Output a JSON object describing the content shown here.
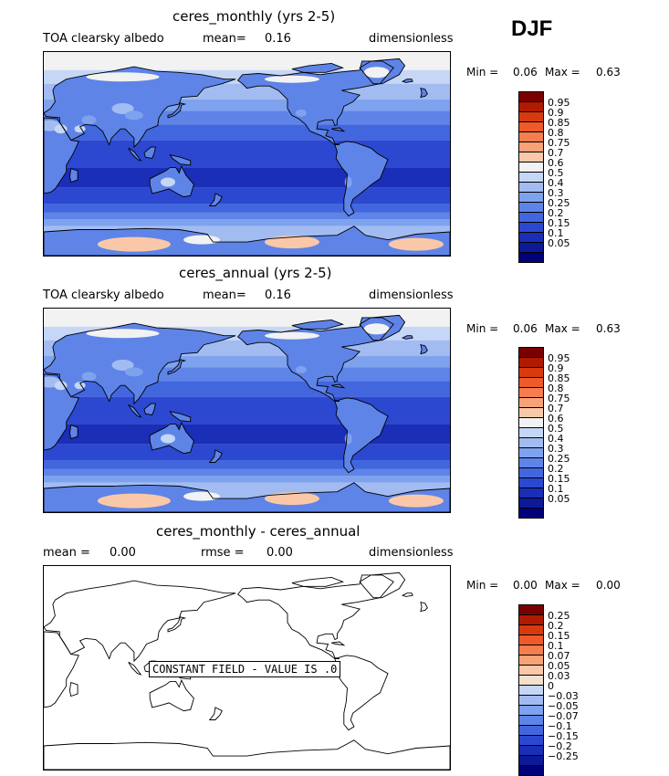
{
  "season": "DJF",
  "panels": [
    {
      "title": "ceres_monthly (yrs 2-5)",
      "variable": "TOA clearsky albedo",
      "stat1_label": "mean=",
      "stat1_value": "0.16",
      "units": "dimensionless",
      "min_label": "Min =",
      "min_value": "0.06",
      "max_label": "Max =",
      "max_value": "0.63",
      "field": "albedo",
      "colorbar": {
        "colors": [
          "#7a0000",
          "#b01a00",
          "#d83a10",
          "#ee5a2a",
          "#f47e4e",
          "#f8a278",
          "#fac8a8",
          "#f2f2f2",
          "#c6d6f6",
          "#a2bcf2",
          "#7ea2ee",
          "#5e84e8",
          "#4266de",
          "#2c48d0",
          "#1a2eb8",
          "#0c1a98",
          "#00007a"
        ],
        "labels": [
          "0.95",
          "0.9",
          "0.85",
          "0.8",
          "0.75",
          "0.7",
          "0.6",
          "0.5",
          "0.4",
          "0.3",
          "0.25",
          "0.2",
          "0.15",
          "0.1",
          "0.05"
        ]
      }
    },
    {
      "title": "ceres_annual (yrs 2-5)",
      "variable": "TOA clearsky albedo",
      "stat1_label": "mean=",
      "stat1_value": "0.16",
      "units": "dimensionless",
      "min_label": "Min =",
      "min_value": "0.06",
      "max_label": "Max =",
      "max_value": "0.63",
      "field": "albedo",
      "colorbar": {
        "colors": [
          "#7a0000",
          "#b01a00",
          "#d83a10",
          "#ee5a2a",
          "#f47e4e",
          "#f8a278",
          "#fac8a8",
          "#f2f2f2",
          "#c6d6f6",
          "#a2bcf2",
          "#7ea2ee",
          "#5e84e8",
          "#4266de",
          "#2c48d0",
          "#1a2eb8",
          "#0c1a98",
          "#00007a"
        ],
        "labels": [
          "0.95",
          "0.9",
          "0.85",
          "0.8",
          "0.75",
          "0.7",
          "0.6",
          "0.5",
          "0.4",
          "0.3",
          "0.25",
          "0.2",
          "0.15",
          "0.1",
          "0.05"
        ]
      }
    },
    {
      "title": "ceres_monthly - ceres_annual",
      "stat1_label": "mean =",
      "stat1_value": "0.00",
      "stat2_label": "rmse =",
      "stat2_value": "0.00",
      "units": "dimensionless",
      "min_label": "Min =",
      "min_value": "0.00",
      "max_label": "Max =",
      "max_value": "0.00",
      "field": "constant",
      "constant_label": "CONSTANT FIELD - VALUE IS .0",
      "colorbar": {
        "colors": [
          "#7a0000",
          "#b01a00",
          "#d83a10",
          "#ee5a2a",
          "#f47e4e",
          "#f8a278",
          "#fac8a8",
          "#f2e0d0",
          "#c6d6f6",
          "#a2bcf2",
          "#7ea2ee",
          "#5e84e8",
          "#4266de",
          "#2c48d0",
          "#1a2eb8",
          "#0c1a98",
          "#00007a"
        ],
        "labels": [
          "0.25",
          "0.2",
          "0.15",
          "0.1",
          "0.07",
          "0.05",
          "0.03",
          "0",
          "-0.03",
          "-0.05",
          "-0.07",
          "-0.1",
          "-0.15",
          "-0.2",
          "-0.25"
        ]
      }
    }
  ]
}
